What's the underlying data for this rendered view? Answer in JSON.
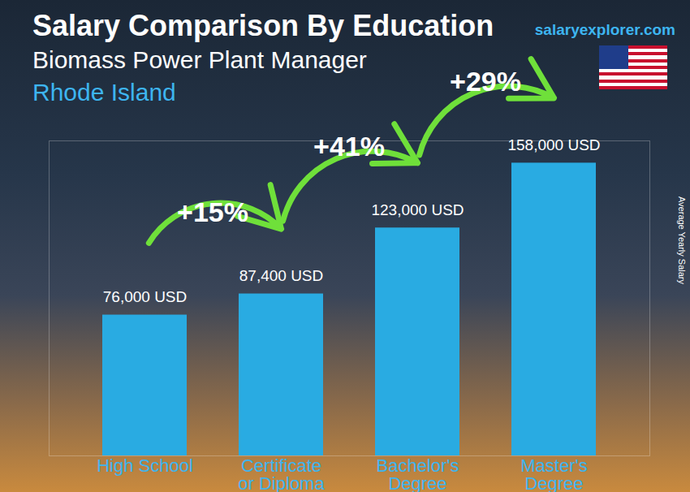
{
  "chart_data": {
    "type": "bar",
    "title": "Salary Comparison By Education",
    "subtitle": "Biomass Power Plant Manager",
    "region": "Rhode Island",
    "source": "salaryexplorer.com",
    "y_label": "Average Yearly Salary",
    "categories": [
      "High School",
      "Certificate or Diploma",
      "Bachelor's Degree",
      "Master's Degree"
    ],
    "values": [
      76000,
      87400,
      123000,
      158000
    ],
    "value_labels": [
      "76,000 USD",
      "87,400 USD",
      "123,000 USD",
      "158,000 USD"
    ],
    "color": "#29abe2",
    "ylim": [
      0,
      170000
    ],
    "yticks": [],
    "tick_labels": "x",
    "data_labels": true,
    "grid": false,
    "annotations": [
      {
        "text": "+15%",
        "from": "High School",
        "to": "Certificate or Diploma"
      },
      {
        "text": "+41%",
        "from": "Certificate or Diploma",
        "to": "Bachelor's Degree"
      },
      {
        "text": "+29%",
        "from": "Bachelor's Degree",
        "to": "Master's Degree"
      }
    ]
  }
}
